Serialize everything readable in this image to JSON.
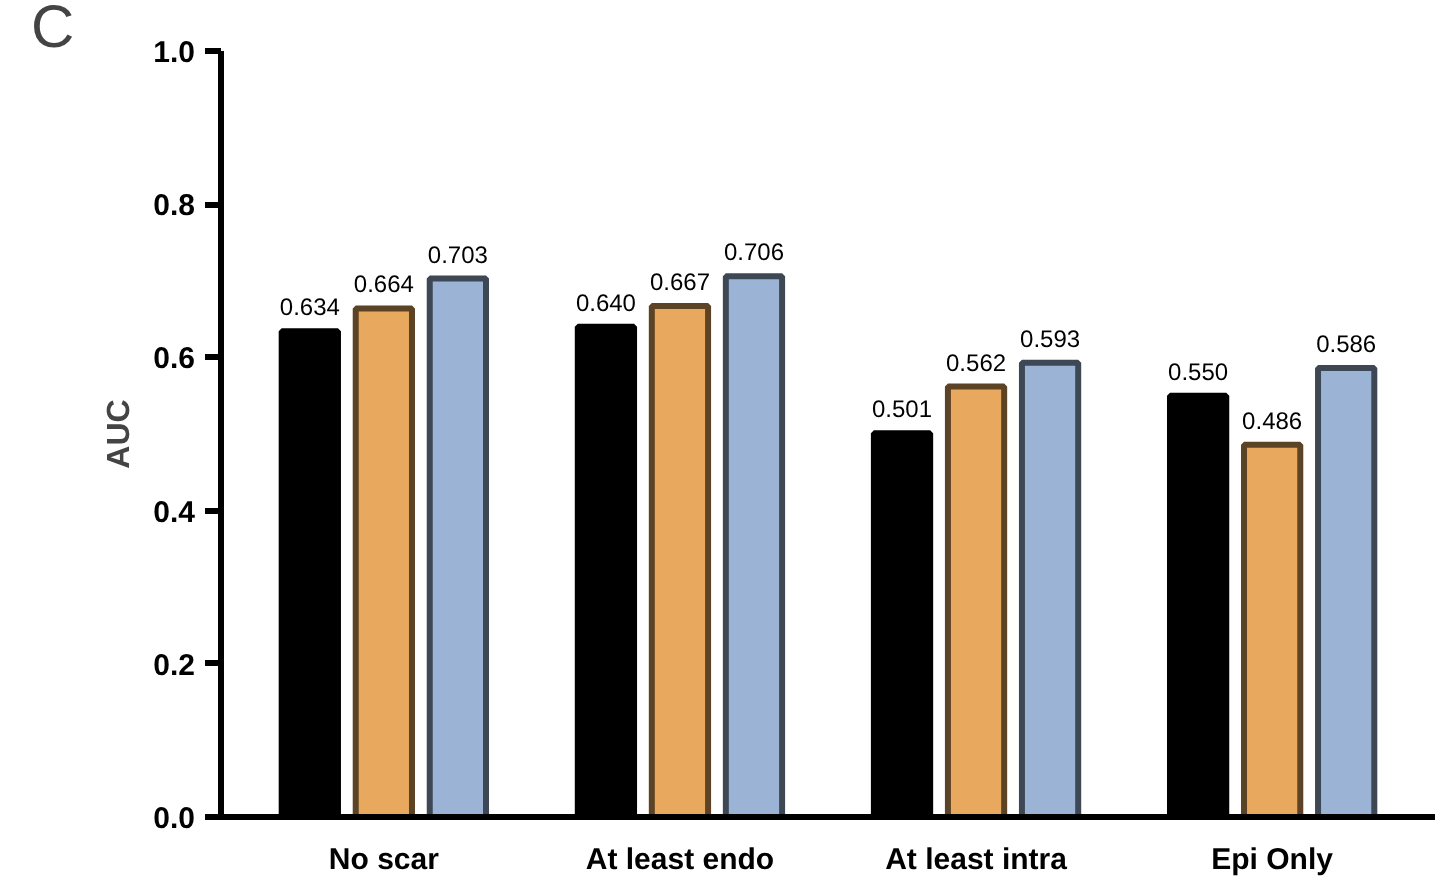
{
  "chart_data": {
    "type": "bar",
    "ylabel": "AUC",
    "annotations": [
      "C"
    ],
    "categories": [
      "No scar",
      "At least endo",
      "At least intra",
      "Epi Only"
    ],
    "ylim": [
      0,
      1
    ],
    "yticks": [
      {
        "value": 0,
        "label": "0.0"
      },
      0.2,
      0.4,
      0.6,
      0.8,
      {
        "value": 1,
        "label": "1.0"
      }
    ],
    "grid": false,
    "series": [
      {
        "color": "#000000",
        "values": [
          0.634,
          0.64,
          0.501,
          0.55
        ],
        "value_labels": [
          "0.634",
          "0.640",
          "0.501",
          "0.550"
        ]
      },
      {
        "color": "#e8a95e",
        "values": [
          0.664,
          0.667,
          0.562,
          0.486
        ],
        "value_labels": [
          "0.664",
          "0.667",
          "0.562",
          "0.486"
        ]
      },
      {
        "color": "#9bb4d6",
        "values": [
          0.703,
          0.706,
          0.593,
          0.586
        ],
        "value_labels": [
          "0.703",
          "0.706",
          "0.593",
          "0.586"
        ]
      }
    ]
  }
}
